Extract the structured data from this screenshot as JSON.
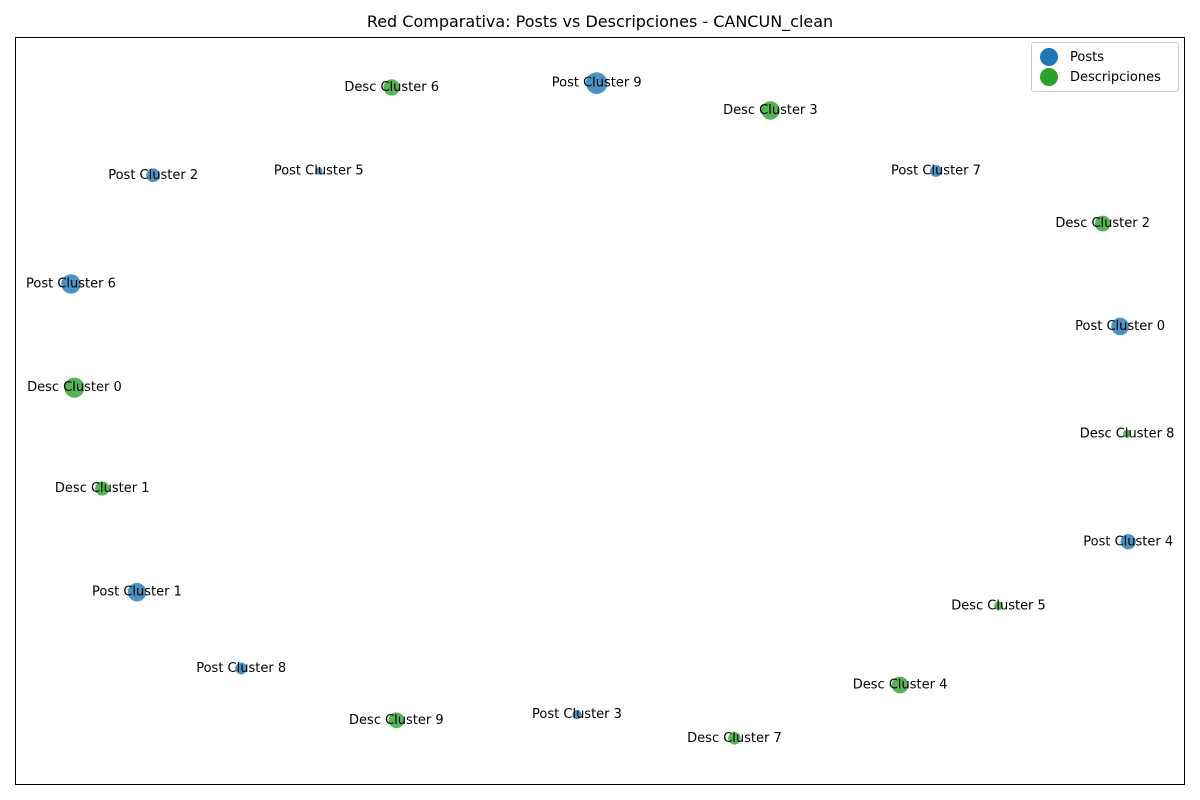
{
  "chart_data": {
    "type": "scatter",
    "title": "Red Comparativa: Posts vs Descripciones - CANCUN_clean",
    "xlabel": "",
    "ylabel": "",
    "xlim": [
      0,
      1
    ],
    "ylim": [
      0,
      1
    ],
    "grid": false,
    "ticks": false,
    "legend_position": "top-right",
    "series": [
      {
        "name": "Posts",
        "color": "#1f77b4",
        "points": [
          {
            "label": "Post Cluster 9",
            "x": 0.498,
            "y": 0.954,
            "size": 300
          },
          {
            "label": "Post Cluster 2",
            "x": 0.115,
            "y": 0.826,
            "size": 120
          },
          {
            "label": "Post Cluster 5",
            "x": 0.258,
            "y": 0.832,
            "size": 35
          },
          {
            "label": "Post Cluster 7",
            "x": 0.791,
            "y": 0.832,
            "size": 90
          },
          {
            "label": "Post Cluster 6",
            "x": 0.044,
            "y": 0.675,
            "size": 240
          },
          {
            "label": "Post Cluster 0",
            "x": 0.95,
            "y": 0.616,
            "size": 200
          },
          {
            "label": "Post Cluster 4",
            "x": 0.957,
            "y": 0.317,
            "size": 150
          },
          {
            "label": "Post Cluster 1",
            "x": 0.101,
            "y": 0.247,
            "size": 220
          },
          {
            "label": "Post Cluster 8",
            "x": 0.191,
            "y": 0.141,
            "size": 90
          },
          {
            "label": "Post Cluster 3",
            "x": 0.481,
            "y": 0.077,
            "size": 55
          }
        ]
      },
      {
        "name": "Descripciones",
        "color": "#2ca02c",
        "points": [
          {
            "label": "Desc Cluster 6",
            "x": 0.321,
            "y": 0.948,
            "size": 170
          },
          {
            "label": "Desc Cluster 3",
            "x": 0.648,
            "y": 0.916,
            "size": 220
          },
          {
            "label": "Desc Cluster 2",
            "x": 0.935,
            "y": 0.759,
            "size": 160
          },
          {
            "label": "Desc Cluster 0",
            "x": 0.047,
            "y": 0.531,
            "size": 260
          },
          {
            "label": "Desc Cluster 8",
            "x": 0.956,
            "y": 0.467,
            "size": 40
          },
          {
            "label": "Desc Cluster 1",
            "x": 0.071,
            "y": 0.391,
            "size": 130
          },
          {
            "label": "Desc Cluster 5",
            "x": 0.845,
            "y": 0.228,
            "size": 50
          },
          {
            "label": "Desc Cluster 4",
            "x": 0.76,
            "y": 0.118,
            "size": 180
          },
          {
            "label": "Desc Cluster 9",
            "x": 0.325,
            "y": 0.069,
            "size": 160
          },
          {
            "label": "Desc Cluster 7",
            "x": 0.617,
            "y": 0.044,
            "size": 100
          }
        ]
      }
    ]
  }
}
